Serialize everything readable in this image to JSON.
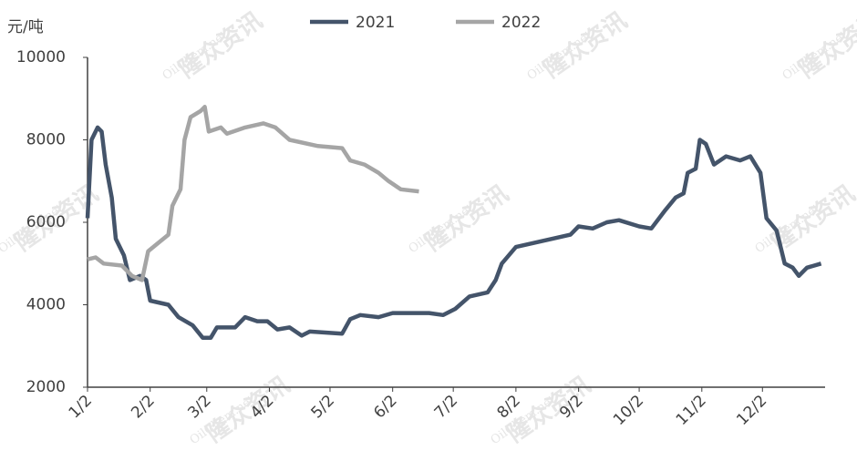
{
  "chart_data": {
    "type": "line",
    "ylabel": "元/吨",
    "watermark": [
      "隆众资讯",
      "OilChem.net"
    ],
    "ylim": [
      2000,
      10000
    ],
    "yticks": [
      2000,
      4000,
      6000,
      8000,
      10000
    ],
    "xticks": [
      "1/2",
      "2/2",
      "3/2",
      "4/2",
      "5/2",
      "6/2",
      "7/2",
      "8/2",
      "9/2",
      "10/2",
      "11/2",
      "12/2"
    ],
    "series": [
      {
        "name": "2021",
        "color": "#44546a",
        "x": [
          "1/2",
          "1/4",
          "1/7",
          "1/9",
          "1/11",
          "1/14",
          "1/16",
          "1/20",
          "1/23",
          "1/28",
          "1/31",
          "2/2",
          "2/11",
          "2/16",
          "2/23",
          "2/28",
          "3/4",
          "3/7",
          "3/16",
          "3/21",
          "3/27",
          "4/1",
          "4/6",
          "4/12",
          "4/18",
          "4/22",
          "5/8",
          "5/12",
          "5/17",
          "5/26",
          "6/2",
          "6/20",
          "6/27",
          "7/3",
          "7/10",
          "7/19",
          "7/23",
          "7/26",
          "8/2",
          "8/11",
          "8/20",
          "8/29",
          "9/2",
          "9/9",
          "9/16",
          "9/22",
          "10/2",
          "10/8",
          "10/15",
          "10/20",
          "10/24",
          "10/26",
          "10/30",
          "11/1",
          "11/4",
          "11/8",
          "11/14",
          "11/21",
          "11/26",
          "12/1",
          "12/4",
          "12/9",
          "12/13",
          "12/17",
          "12/20",
          "12/24",
          "12/31"
        ],
        "values": [
          6100,
          8000,
          8300,
          8200,
          7400,
          6600,
          5600,
          5200,
          4600,
          4700,
          4600,
          4100,
          4000,
          3700,
          3500,
          3200,
          3200,
          3450,
          3450,
          3700,
          3600,
          3600,
          3400,
          3450,
          3250,
          3350,
          3300,
          3650,
          3750,
          3700,
          3800,
          3800,
          3750,
          3900,
          4200,
          4300,
          4600,
          5000,
          5400,
          5500,
          5600,
          5700,
          5900,
          5850,
          6000,
          6050,
          5900,
          5850,
          6300,
          6600,
          6700,
          7200,
          7300,
          8000,
          7900,
          7400,
          7600,
          7500,
          7600,
          7200,
          6100,
          5800,
          5000,
          4900,
          4700,
          4900,
          5000
        ]
      },
      {
        "name": "2022",
        "color": "#a5a5a5",
        "x": [
          "1/2",
          "1/6",
          "1/10",
          "1/19",
          "1/24",
          "1/29",
          "2/1",
          "2/6",
          "2/11",
          "2/13",
          "2/17",
          "2/19",
          "2/22",
          "2/27",
          "3/1",
          "3/3",
          "3/9",
          "3/12",
          "3/21",
          "3/30",
          "4/5",
          "4/12",
          "4/26",
          "5/8",
          "5/12",
          "5/19",
          "5/26",
          "5/31",
          "6/6",
          "6/15"
        ],
        "values": [
          5100,
          5150,
          5000,
          4950,
          4700,
          4600,
          5300,
          5500,
          5700,
          6400,
          6800,
          8000,
          8550,
          8700,
          8800,
          8200,
          8300,
          8150,
          8300,
          8400,
          8300,
          8000,
          7850,
          7800,
          7500,
          7400,
          7200,
          7000,
          6800,
          6750
        ]
      }
    ]
  }
}
